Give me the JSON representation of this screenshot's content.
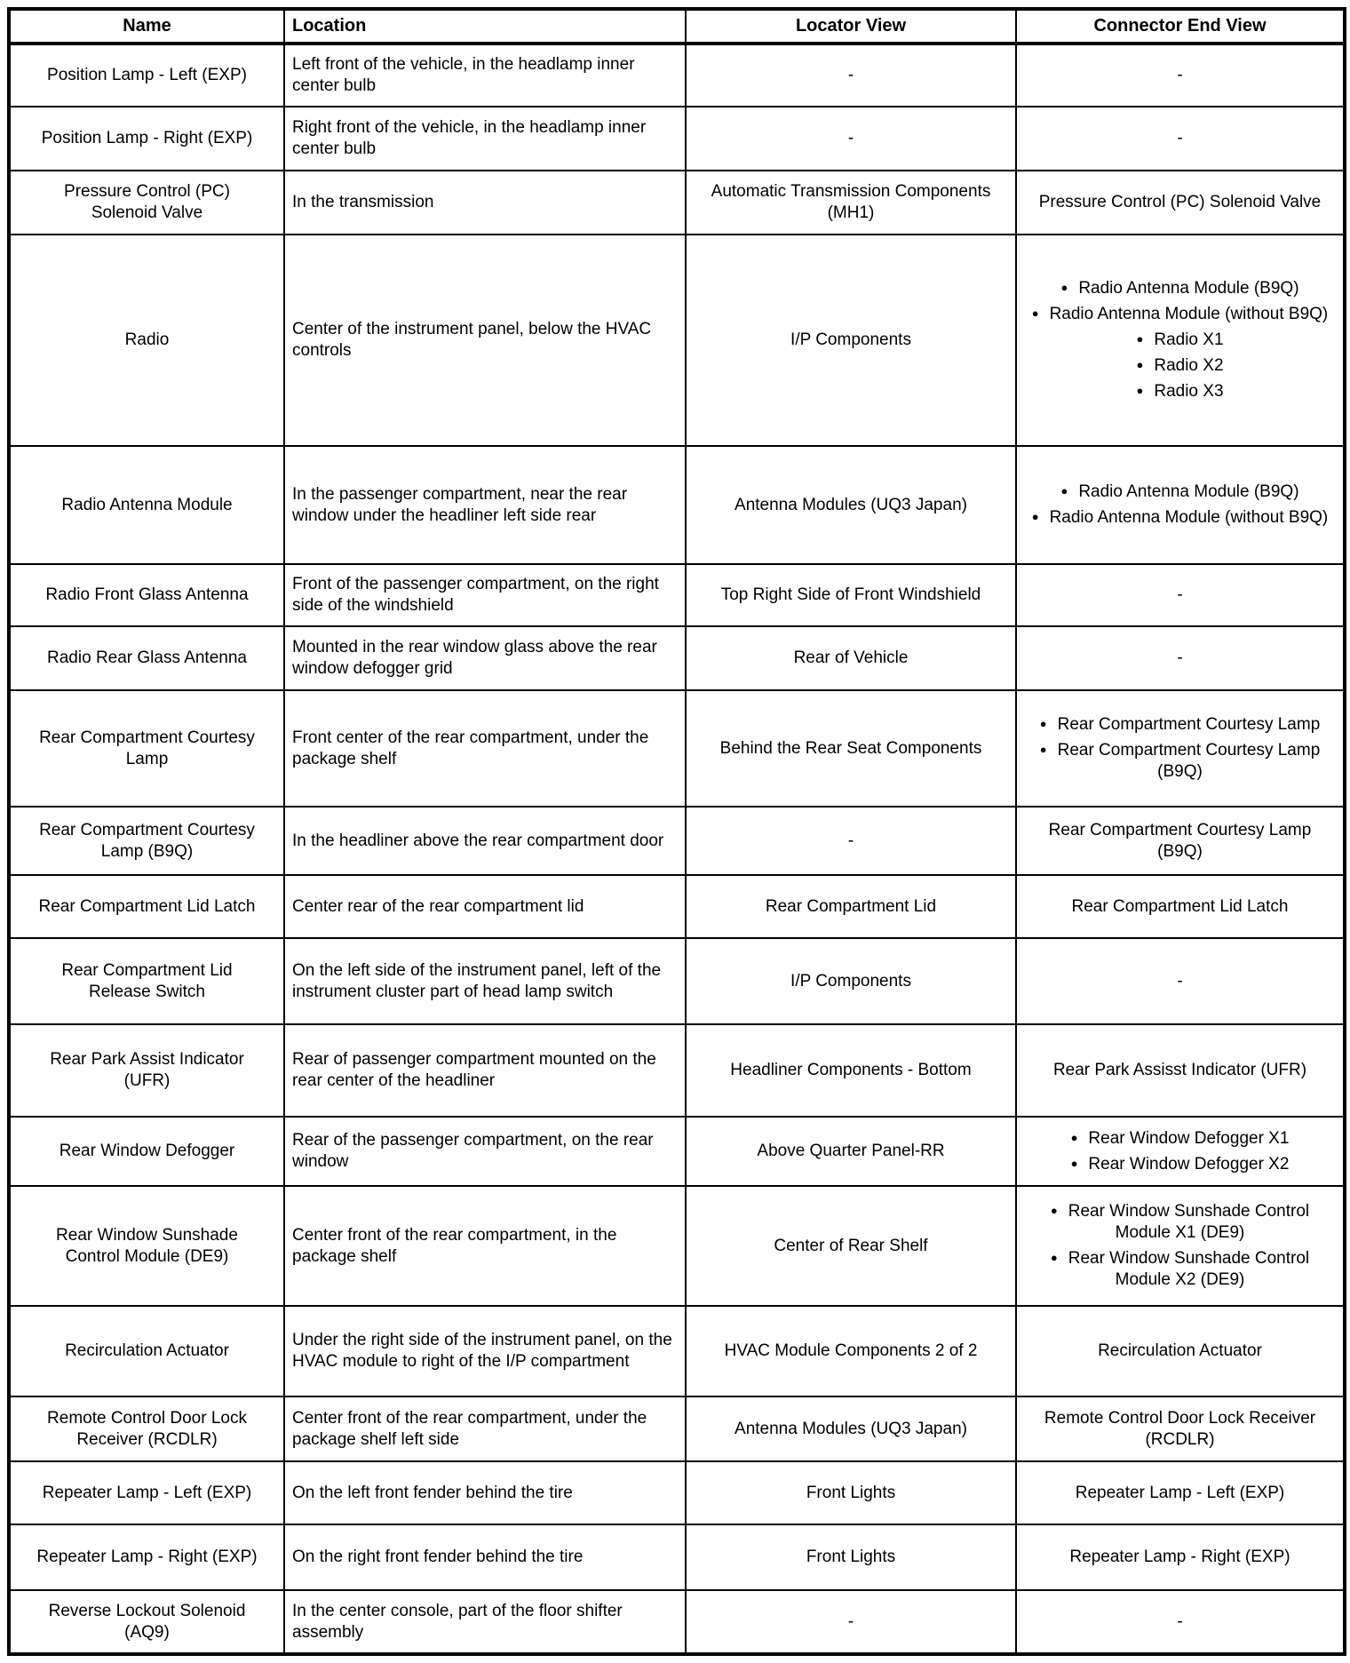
{
  "icons": {
    "bullet": "●"
  },
  "table": {
    "columns": [
      {
        "label": "Name"
      },
      {
        "label": "Location"
      },
      {
        "label": "Locator View"
      },
      {
        "label": "Connector End View"
      }
    ],
    "rows": [
      {
        "name": "Position Lamp - Left (EXP)",
        "location": "Left front of the vehicle, in the headlamp inner center bulb",
        "locator_view": "-",
        "connector_end_view": "-"
      },
      {
        "name": "Position Lamp - Right (EXP)",
        "location": "Right front of the vehicle, in the headlamp inner center bulb",
        "locator_view": "-",
        "connector_end_view": "-"
      },
      {
        "name": "Pressure Control (PC) Solenoid Valve",
        "location": "In the transmission",
        "locator_view": "Automatic Transmission Components (MH1)",
        "connector_end_view": "Pressure Control (PC) Solenoid Valve"
      },
      {
        "name": "Radio",
        "location": "Center of the instrument panel, below the HVAC controls",
        "locator_view": "I/P Components",
        "connector_end_view": [
          "Radio Antenna Module (B9Q)",
          "Radio Antenna Module (without B9Q)",
          "Radio X1",
          "Radio X2",
          "Radio X3"
        ]
      },
      {
        "name": "Radio Antenna Module",
        "location": "In the passenger compartment, near the rear window under the headliner left side rear",
        "locator_view": "Antenna Modules (UQ3 Japan)",
        "connector_end_view": [
          "Radio Antenna Module (B9Q)",
          "Radio Antenna Module (without B9Q)"
        ]
      },
      {
        "name": "Radio Front Glass Antenna",
        "location": "Front of the passenger compartment, on the right side of the windshield",
        "locator_view": "Top Right Side of Front Windshield",
        "connector_end_view": "-"
      },
      {
        "name": "Radio Rear Glass Antenna",
        "location": "Mounted in the rear window glass above the rear window defogger grid",
        "locator_view": "Rear of Vehicle",
        "connector_end_view": "-"
      },
      {
        "name": "Rear Compartment Courtesy Lamp",
        "location": "Front center of the rear compartment, under the package shelf",
        "locator_view": "Behind the Rear Seat Components",
        "connector_end_view": [
          "Rear Compartment Courtesy Lamp",
          "Rear Compartment Courtesy Lamp (B9Q)"
        ]
      },
      {
        "name": "Rear Compartment Courtesy Lamp (B9Q)",
        "location": "In the headliner above the rear compartment door",
        "locator_view": "-",
        "connector_end_view": "Rear Compartment Courtesy Lamp (B9Q)"
      },
      {
        "name": "Rear Compartment Lid Latch",
        "location": "Center rear of the rear compartment lid",
        "locator_view": "Rear Compartment Lid",
        "connector_end_view": "Rear Compartment Lid Latch"
      },
      {
        "name": "Rear Compartment Lid Release Switch",
        "location": "On the left side of the instrument panel, left of the instrument cluster part of head lamp switch",
        "locator_view": "I/P Components",
        "connector_end_view": "-"
      },
      {
        "name": "Rear Park Assist Indicator (UFR)",
        "location": "Rear of passenger compartment mounted on the rear center of the headliner",
        "locator_view": "Headliner Components - Bottom",
        "connector_end_view": "Rear Park Assisst Indicator (UFR)"
      },
      {
        "name": "Rear Window Defogger",
        "location": "Rear of the passenger compartment, on the rear window",
        "locator_view": "Above Quarter Panel-RR",
        "connector_end_view": [
          "Rear Window Defogger X1",
          "Rear Window Defogger X2"
        ]
      },
      {
        "name": "Rear Window Sunshade Control Module (DE9)",
        "location": "Center front of the rear compartment, in the package shelf",
        "locator_view": "Center of Rear Shelf",
        "connector_end_view": [
          "Rear Window Sunshade Control Module X1 (DE9)",
          "Rear Window Sunshade Control Module X2 (DE9)"
        ]
      },
      {
        "name": "Recirculation Actuator",
        "location": "Under the right side of the instrument panel, on the HVAC module to right of the I/P compartment",
        "locator_view": "HVAC Module Components 2 of 2",
        "connector_end_view": "Recirculation Actuator"
      },
      {
        "name": "Remote Control Door Lock Receiver (RCDLR)",
        "location": "Center front of the rear compartment, under the package shelf left side",
        "locator_view": "Antenna Modules (UQ3 Japan)",
        "connector_end_view": "Remote Control Door Lock Receiver (RCDLR)"
      },
      {
        "name": "Repeater Lamp - Left (EXP)",
        "location": "On the left front fender behind the tire",
        "locator_view": "Front Lights",
        "connector_end_view": "Repeater Lamp - Left (EXP)"
      },
      {
        "name": "Repeater Lamp - Right (EXP)",
        "location": "On the right front fender behind the tire",
        "locator_view": "Front Lights",
        "connector_end_view": "Repeater Lamp - Right (EXP)"
      },
      {
        "name": "Reverse Lockout Solenoid (AQ9)",
        "location": "In the center console, part of the floor shifter assembly",
        "locator_view": "-",
        "connector_end_view": "-"
      }
    ]
  }
}
